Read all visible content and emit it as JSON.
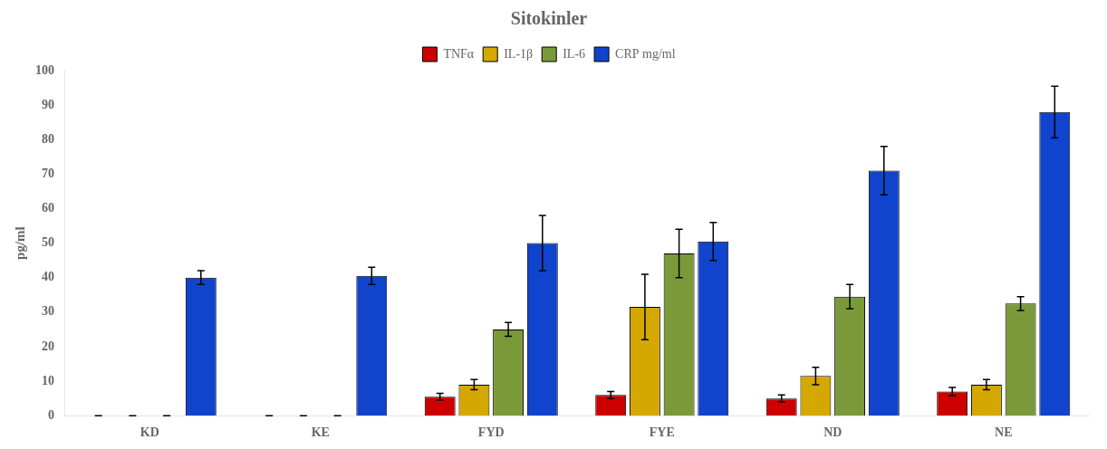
{
  "chart_data": {
    "type": "bar",
    "title": "Sitokinler",
    "ylabel": "pg/ml",
    "categories": [
      "KD",
      "KE",
      "FYD",
      "FYE",
      "ND",
      "NE"
    ],
    "series": [
      {
        "name": "TNFα",
        "color": "#CC0000",
        "values": [
          0,
          0,
          5.5,
          6.0,
          5.0,
          7.0
        ],
        "errors": [
          0,
          0,
          1.0,
          1.0,
          1.0,
          1.2
        ]
      },
      {
        "name": "IL-1β",
        "color": "#D4A800",
        "values": [
          0,
          0,
          9.0,
          31.5,
          11.5,
          9.0
        ],
        "errors": [
          0,
          0,
          1.5,
          9.5,
          2.5,
          1.5
        ]
      },
      {
        "name": "IL-6",
        "color": "#7A9A3A",
        "values": [
          0,
          0,
          25.0,
          47.0,
          34.5,
          32.5
        ],
        "errors": [
          0,
          0,
          2.0,
          7.0,
          3.5,
          2.0
        ]
      },
      {
        "name": "CRP mg/ml",
        "color": "#1144CC",
        "values": [
          40.0,
          40.5,
          50.0,
          50.5,
          71.0,
          88.0
        ],
        "errors": [
          2.0,
          2.5,
          8.0,
          5.5,
          7.0,
          7.5
        ]
      }
    ],
    "ylim": [
      0,
      100
    ],
    "yticks": [
      0,
      10,
      20,
      30,
      40,
      50,
      60,
      70,
      80,
      90,
      100
    ],
    "grid": false,
    "legend": "top"
  }
}
